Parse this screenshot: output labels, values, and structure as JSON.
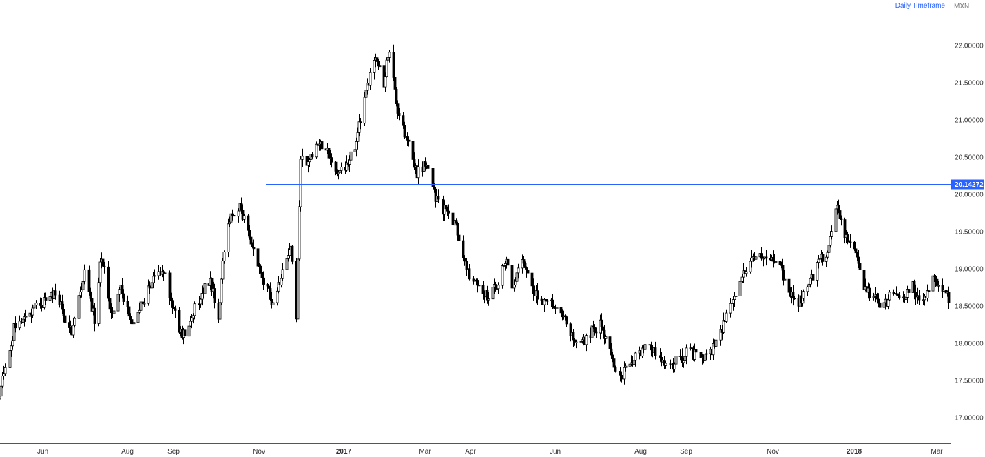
{
  "header": {
    "timeframe_label": "Daily Timeframe",
    "currency_label": "MXN"
  },
  "colors": {
    "candle": "#000000",
    "level_line": "#2962ff",
    "level_badge": "#2962ff",
    "axis": "#333333"
  },
  "chart_data": {
    "type": "candlestick",
    "title": "",
    "xlabel": "",
    "ylabel": "",
    "ylim": [
      16.6,
      22.3
    ],
    "y_ticks": [
      "17.00000",
      "17.50000",
      "18.00000",
      "18.50000",
      "19.00000",
      "19.50000",
      "20.00000",
      "20.50000",
      "21.00000",
      "21.50000",
      "22.00000"
    ],
    "x_ticks": [
      "Jun",
      "Aug",
      "Sep",
      "Nov",
      "2017",
      "Mar",
      "Apr",
      "Jun",
      "Aug",
      "Sep",
      "Nov",
      "2018",
      "Mar"
    ],
    "horizontal_level": {
      "value": 20.14272,
      "label": "20.14272"
    },
    "series": [
      {
        "type": "close_path",
        "anchors": [
          [
            "2016-05-01",
            17.25
          ],
          [
            "2016-05-12",
            18.2
          ],
          [
            "2016-05-27",
            18.5
          ],
          [
            "2016-06-10",
            18.65
          ],
          [
            "2016-06-22",
            18.15
          ],
          [
            "2016-07-01",
            18.95
          ],
          [
            "2016-07-08",
            18.3
          ],
          [
            "2016-07-13",
            19.2
          ],
          [
            "2016-07-20",
            18.4
          ],
          [
            "2016-07-27",
            18.7
          ],
          [
            "2016-08-04",
            18.3
          ],
          [
            "2016-08-12",
            18.55
          ],
          [
            "2016-08-19",
            18.9
          ],
          [
            "2016-08-25",
            18.95
          ],
          [
            "2016-09-02",
            18.4
          ],
          [
            "2016-09-07",
            18.05
          ],
          [
            "2016-09-13",
            18.35
          ],
          [
            "2016-09-20",
            18.65
          ],
          [
            "2016-09-27",
            18.85
          ],
          [
            "2016-10-03",
            18.35
          ],
          [
            "2016-10-06",
            19.1
          ],
          [
            "2016-10-11",
            19.7
          ],
          [
            "2016-10-18",
            19.85
          ],
          [
            "2016-10-26",
            19.4
          ],
          [
            "2016-11-02",
            18.9
          ],
          [
            "2016-11-11",
            18.55
          ],
          [
            "2016-11-18",
            18.95
          ],
          [
            "2016-11-24",
            19.3
          ],
          [
            "2016-11-28",
            18.4
          ],
          [
            "2016-12-01",
            20.55
          ],
          [
            "2016-12-05",
            20.45
          ],
          [
            "2016-12-12",
            20.65
          ],
          [
            "2016-12-19",
            20.6
          ],
          [
            "2016-12-27",
            20.2
          ],
          [
            "2017-01-03",
            20.4
          ],
          [
            "2017-01-10",
            20.7
          ],
          [
            "2017-01-17",
            21.4
          ],
          [
            "2017-01-24",
            21.85
          ],
          [
            "2017-01-30",
            21.5
          ],
          [
            "2017-02-03",
            21.95
          ],
          [
            "2017-02-09",
            21.1
          ],
          [
            "2017-02-16",
            20.7
          ],
          [
            "2017-02-23",
            20.3
          ],
          [
            "2017-03-02",
            20.45
          ],
          [
            "2017-03-09",
            19.9
          ],
          [
            "2017-03-15",
            19.75
          ],
          [
            "2017-03-22",
            19.55
          ],
          [
            "2017-03-29",
            18.95
          ],
          [
            "2017-04-06",
            18.8
          ],
          [
            "2017-04-13",
            18.65
          ],
          [
            "2017-04-20",
            18.8
          ],
          [
            "2017-04-27",
            19.2
          ],
          [
            "2017-05-01",
            18.8
          ],
          [
            "2017-05-08",
            19.15
          ],
          [
            "2017-05-15",
            18.7
          ],
          [
            "2017-05-22",
            18.6
          ],
          [
            "2017-05-29",
            18.55
          ],
          [
            "2017-06-05",
            18.4
          ],
          [
            "2017-06-12",
            18.15
          ],
          [
            "2017-06-19",
            17.95
          ],
          [
            "2017-06-26",
            18.15
          ],
          [
            "2017-07-03",
            18.25
          ],
          [
            "2017-07-10",
            17.85
          ],
          [
            "2017-07-17",
            17.5
          ],
          [
            "2017-07-24",
            17.75
          ],
          [
            "2017-07-31",
            17.85
          ],
          [
            "2017-08-07",
            17.95
          ],
          [
            "2017-08-14",
            17.75
          ],
          [
            "2017-08-21",
            17.7
          ],
          [
            "2017-08-28",
            17.8
          ],
          [
            "2017-09-04",
            17.9
          ],
          [
            "2017-09-11",
            17.75
          ],
          [
            "2017-09-18",
            17.85
          ],
          [
            "2017-09-25",
            18.15
          ],
          [
            "2017-10-02",
            18.5
          ],
          [
            "2017-10-09",
            18.85
          ],
          [
            "2017-10-16",
            19.05
          ],
          [
            "2017-10-23",
            19.2
          ],
          [
            "2017-10-30",
            19.1
          ],
          [
            "2017-11-06",
            19.05
          ],
          [
            "2017-11-13",
            18.65
          ],
          [
            "2017-11-20",
            18.55
          ],
          [
            "2017-11-27",
            18.7
          ],
          [
            "2017-12-04",
            19.05
          ],
          [
            "2017-12-11",
            19.2
          ],
          [
            "2017-12-18",
            19.85
          ],
          [
            "2017-12-25",
            19.45
          ],
          [
            "2018-01-01",
            19.3
          ],
          [
            "2018-01-08",
            18.8
          ],
          [
            "2018-01-15",
            18.6
          ],
          [
            "2018-01-22",
            18.5
          ],
          [
            "2018-01-29",
            18.7
          ],
          [
            "2018-02-05",
            18.65
          ],
          [
            "2018-02-12",
            18.75
          ],
          [
            "2018-02-19",
            18.55
          ],
          [
            "2018-02-26",
            18.85
          ],
          [
            "2018-03-05",
            18.75
          ],
          [
            "2018-03-09",
            18.6
          ]
        ]
      }
    ],
    "grid": false,
    "legend": "none"
  }
}
